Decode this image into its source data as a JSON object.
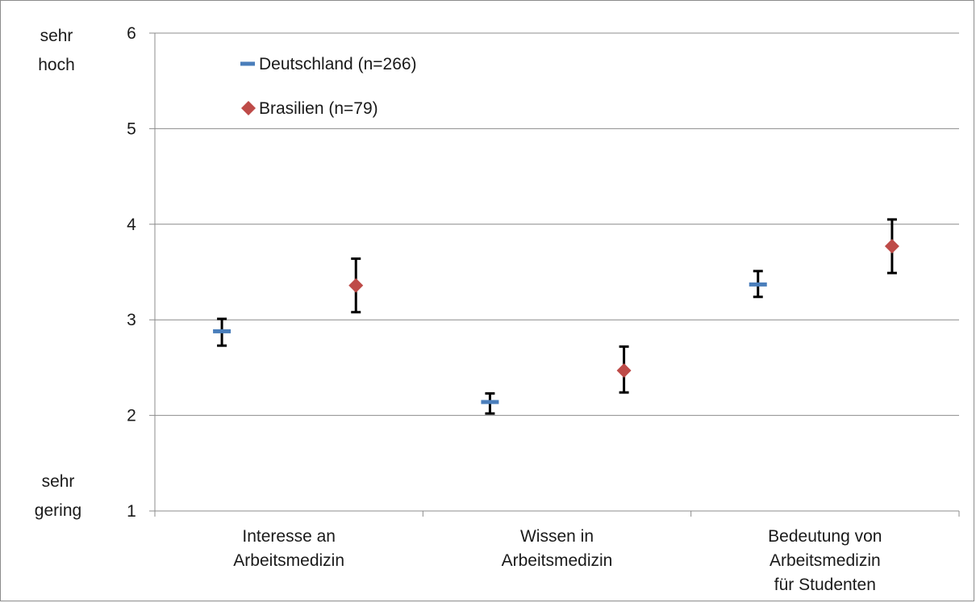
{
  "chart_data": {
    "type": "scatter",
    "title": "",
    "xlabel": "",
    "ylabel": "",
    "ylim": [
      1,
      6
    ],
    "yticks": [
      1,
      2,
      3,
      4,
      5,
      6
    ],
    "grid": "horizontal",
    "legend_position": "top-left",
    "y_top_label": [
      "sehr",
      "hoch"
    ],
    "y_bottom_label": [
      "sehr",
      "gering"
    ],
    "categories": [
      [
        "Interesse an",
        "Arbeitsmedizin"
      ],
      [
        "Wissen in",
        "Arbeitsmedizin"
      ],
      [
        "Bedeutung von",
        "Arbeitsmedizin",
        "für Studenten"
      ]
    ],
    "series": [
      {
        "name": "Deutschland (n=266)",
        "marker": "dash",
        "color": "#4a7ebb",
        "values": [
          2.88,
          2.14,
          3.37
        ],
        "error_low": [
          2.73,
          2.02,
          3.24
        ],
        "error_high": [
          3.01,
          2.23,
          3.51
        ]
      },
      {
        "name": "Brasilien (n=79)",
        "marker": "diamond",
        "color": "#be4b48",
        "values": [
          3.36,
          2.47,
          3.77
        ],
        "error_low": [
          3.08,
          2.24,
          3.49
        ],
        "error_high": [
          3.64,
          2.72,
          4.05
        ]
      }
    ]
  }
}
